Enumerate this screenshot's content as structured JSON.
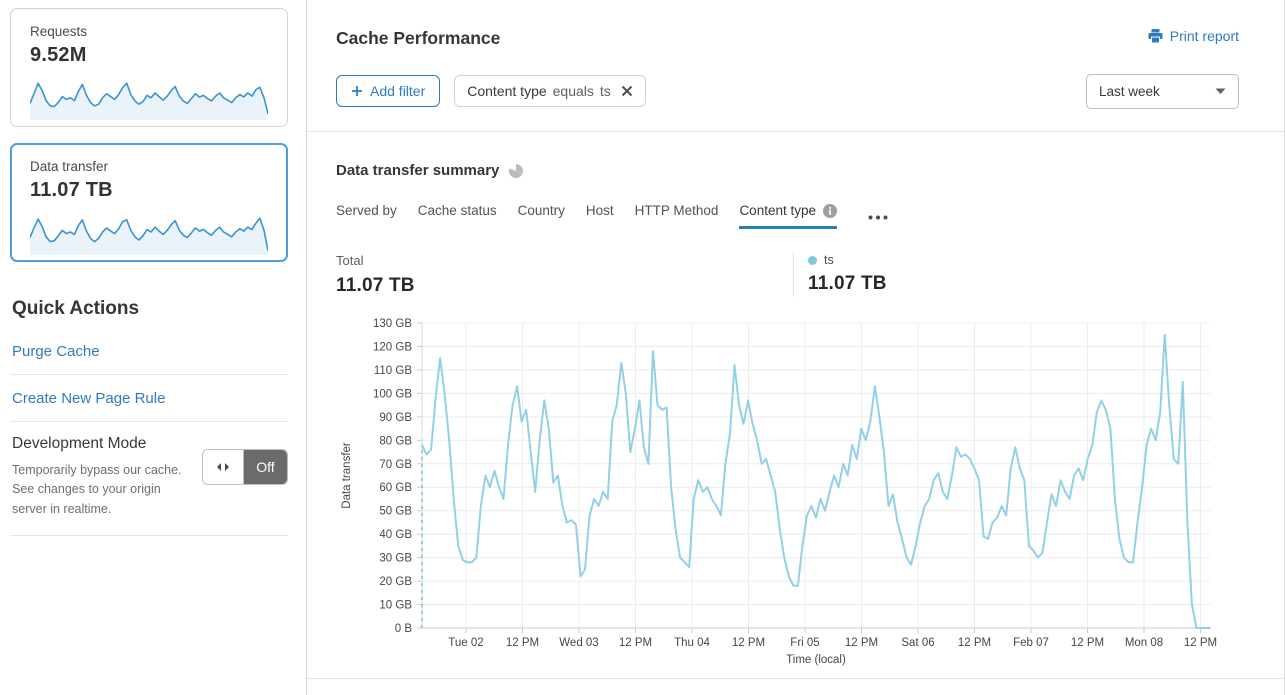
{
  "sidebar": {
    "cards": [
      {
        "label": "Requests",
        "value": "9.52M",
        "selected": false,
        "sparkline": [
          38,
          62,
          88,
          70,
          45,
          32,
          30,
          40,
          55,
          48,
          52,
          45,
          68,
          85,
          58,
          40,
          32,
          36,
          52,
          62,
          55,
          48,
          60,
          78,
          88,
          60,
          44,
          36,
          42,
          58,
          52,
          64,
          55,
          46,
          56,
          70,
          80,
          56,
          44,
          38,
          50,
          62,
          54,
          58,
          50,
          44,
          56,
          64,
          52,
          46,
          40,
          52,
          60,
          54,
          64,
          56,
          72,
          78,
          52,
          12
        ]
      },
      {
        "label": "Data transfer",
        "value": "11.07 TB",
        "selected": true,
        "sparkline": [
          40,
          64,
          86,
          68,
          42,
          30,
          32,
          44,
          58,
          50,
          54,
          48,
          70,
          84,
          56,
          38,
          30,
          38,
          54,
          64,
          56,
          50,
          62,
          80,
          84,
          58,
          42,
          34,
          44,
          60,
          54,
          66,
          56,
          48,
          58,
          72,
          82,
          58,
          46,
          40,
          52,
          64,
          56,
          60,
          52,
          46,
          58,
          66,
          54,
          48,
          42,
          54,
          62,
          56,
          66,
          60,
          76,
          88,
          58,
          8
        ]
      }
    ],
    "quick_actions": {
      "title": "Quick Actions",
      "links": [
        "Purge Cache",
        "Create New Page Rule"
      ],
      "dev_mode": {
        "title": "Development Mode",
        "description": "Temporarily bypass our cache. See changes to your origin server in realtime.",
        "toggle_state": "Off"
      }
    }
  },
  "header": {
    "title": "Cache Performance",
    "print_label": "Print report"
  },
  "filters": {
    "add_label": "Add filter",
    "chips": [
      {
        "field": "Content type",
        "operator": "equals",
        "value": "ts"
      }
    ],
    "range_selected": "Last week"
  },
  "summary": {
    "title": "Data transfer summary",
    "tabs": [
      {
        "label": "Served by",
        "active": false
      },
      {
        "label": "Cache status",
        "active": false
      },
      {
        "label": "Country",
        "active": false
      },
      {
        "label": "Host",
        "active": false
      },
      {
        "label": "HTTP Method",
        "active": false
      },
      {
        "label": "Content type",
        "active": true
      }
    ],
    "total_label": "Total",
    "total_value": "11.07 TB",
    "legend": {
      "name": "ts",
      "value": "11.07 TB"
    }
  },
  "chart_data": {
    "type": "line",
    "title": "Data transfer summary",
    "xlabel": "Time (local)",
    "ylabel": "Data transfer",
    "unit": "GB",
    "ylim": [
      0,
      130
    ],
    "y_ticks": [
      "0 B",
      "10 GB",
      "20 GB",
      "30 GB",
      "40 GB",
      "50 GB",
      "60 GB",
      "70 GB",
      "80 GB",
      "90 GB",
      "100 GB",
      "110 GB",
      "120 GB",
      "130 GB"
    ],
    "x_ticks": [
      "Tue 02",
      "12 PM",
      "Wed 03",
      "12 PM",
      "Thu 04",
      "12 PM",
      "Fri 05",
      "12 PM",
      "Sat 06",
      "12 PM",
      "Feb 07",
      "12 PM",
      "Mon 08",
      "12 PM"
    ],
    "grid": true,
    "dashed_start": true,
    "legend_position": "top",
    "series": [
      {
        "name": "ts",
        "color": "#92d1e5",
        "values": [
          78,
          74,
          76,
          98,
          115,
          100,
          80,
          55,
          35,
          29,
          28,
          28,
          30,
          52,
          65,
          60,
          67,
          60,
          55,
          78,
          95,
          103,
          88,
          93,
          75,
          58,
          80,
          97,
          85,
          62,
          65,
          52,
          45,
          46,
          44,
          22,
          25,
          48,
          55,
          52,
          58,
          55,
          88,
          95,
          113,
          100,
          75,
          85,
          97,
          77,
          70,
          118,
          95,
          93,
          94,
          60,
          42,
          30,
          28,
          26,
          55,
          63,
          58,
          60,
          55,
          52,
          48,
          70,
          83,
          112,
          95,
          87,
          97,
          87,
          80,
          70,
          72,
          65,
          58,
          42,
          30,
          22,
          18,
          18,
          35,
          48,
          52,
          47,
          55,
          50,
          58,
          65,
          60,
          70,
          65,
          78,
          72,
          85,
          80,
          88,
          103,
          90,
          75,
          52,
          57,
          45,
          38,
          30,
          27,
          35,
          45,
          52,
          55,
          63,
          66,
          58,
          55,
          65,
          77,
          73,
          74,
          72,
          68,
          63,
          39,
          38,
          45,
          47,
          52,
          48,
          68,
          77,
          68,
          63,
          35,
          33,
          30,
          32,
          45,
          57,
          52,
          63,
          58,
          55,
          65,
          68,
          63,
          72,
          78,
          92,
          97,
          93,
          85,
          55,
          38,
          30,
          28,
          28,
          45,
          60,
          78,
          85,
          80,
          92,
          125,
          95,
          72,
          70,
          105,
          45,
          10,
          0,
          0,
          0,
          0
        ]
      }
    ]
  },
  "colors": {
    "accent": "#2f7bbf",
    "line": "#92d1e5",
    "legend_dot": "#7fc8e0",
    "spark": "#3b92cf",
    "spark_fill": "#eaf3fa",
    "active_tab_underline": "#2c7cb5",
    "toggle_off_bg": "#6b6b6b"
  }
}
